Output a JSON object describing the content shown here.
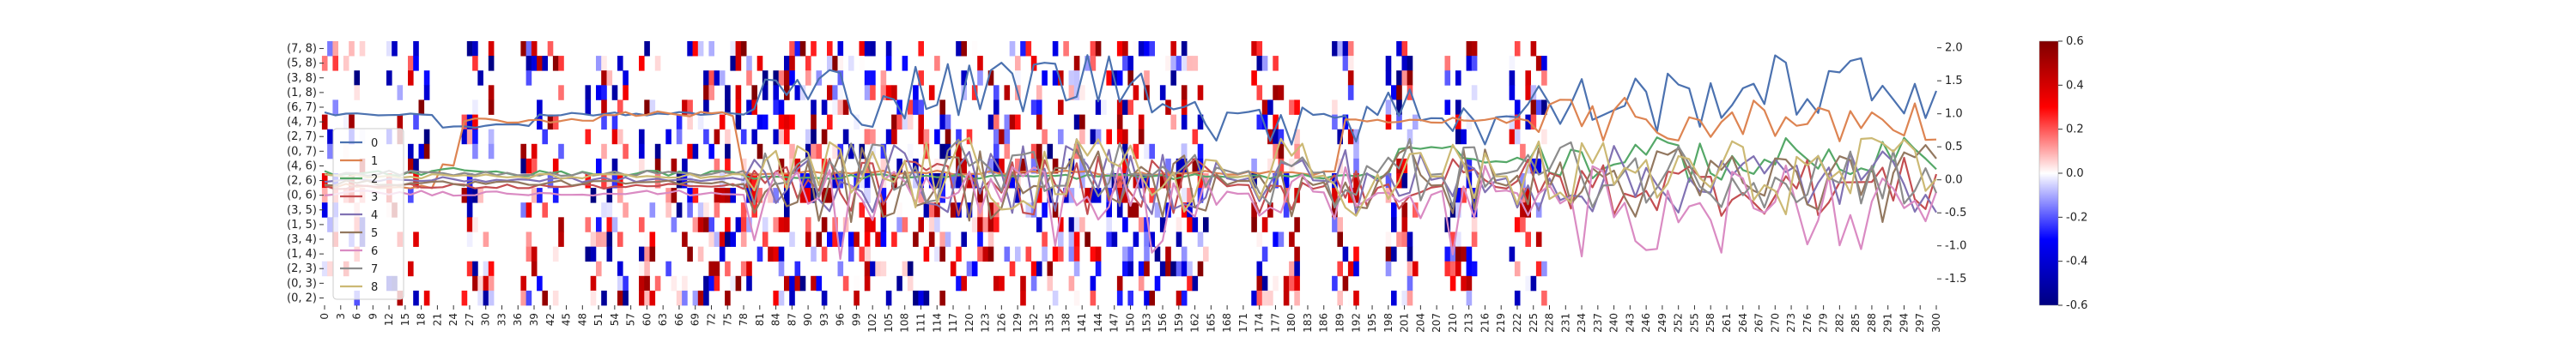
{
  "chart_data": {
    "type": "heatmap",
    "title": "",
    "xlabel": "",
    "ylabel": "",
    "x_ticks": [
      0,
      3,
      6,
      9,
      12,
      15,
      18,
      21,
      24,
      27,
      30,
      33,
      36,
      39,
      42,
      45,
      48,
      51,
      54,
      57,
      60,
      63,
      66,
      69,
      72,
      75,
      78,
      81,
      84,
      87,
      90,
      93,
      96,
      99,
      102,
      105,
      108,
      111,
      114,
      117,
      120,
      123,
      126,
      129,
      132,
      135,
      138,
      141,
      144,
      147,
      150,
      153,
      156,
      159,
      162,
      165,
      168,
      171,
      174,
      177,
      180,
      183,
      186,
      189,
      192,
      195,
      198,
      201,
      204,
      207,
      210,
      213,
      216,
      219,
      222,
      225,
      228,
      231,
      234,
      237,
      240,
      243,
      246,
      249,
      252,
      255,
      258,
      261,
      264,
      267,
      270,
      273,
      276,
      279,
      282,
      285,
      288,
      291,
      294,
      297,
      300
    ],
    "xlim": [
      0,
      300
    ],
    "y_categories": [
      "(7, 8)",
      "(5, 8)",
      "(3, 8)",
      "(1, 8)",
      "(6, 7)",
      "(4, 7)",
      "(2, 7)",
      "(0, 7)",
      "(4, 6)",
      "(2, 6)",
      "(0, 6)",
      "(3, 5)",
      "(1, 5)",
      "(3, 4)",
      "(1, 4)",
      "(2, 3)",
      "(0, 3)",
      "(0, 2)"
    ],
    "heatmap_colorbar": {
      "ticks": [
        0.6,
        0.4,
        0.2,
        0.0,
        -0.2,
        -0.4,
        -0.6
      ],
      "range": [
        -0.6,
        0.6
      ],
      "cmap": "seismic"
    },
    "overlay_axis": {
      "ticks": [
        2.0,
        1.5,
        1.0,
        0.5,
        0.0,
        -0.5,
        -1.0,
        -1.5
      ],
      "range": [
        -1.9,
        2.1
      ]
    },
    "active_column_ranges": [
      [
        0,
        2
      ],
      [
        4,
        7
      ],
      [
        12,
        14
      ],
      [
        16,
        19
      ],
      [
        26,
        31
      ],
      [
        37,
        44
      ],
      [
        49,
        56
      ],
      [
        59,
        62
      ],
      [
        64,
        71
      ],
      [
        72,
        80
      ],
      [
        80,
        101
      ],
      [
        101,
        134
      ],
      [
        135,
        160
      ],
      [
        160,
        164
      ],
      [
        173,
        181
      ],
      [
        188,
        192
      ],
      [
        198,
        203
      ],
      [
        209,
        214
      ],
      [
        221,
        227
      ]
    ],
    "legend": {
      "placement": "lower-left",
      "entries": [
        "0",
        "1",
        "2",
        "3",
        "4",
        "5",
        "6",
        "7",
        "8"
      ]
    },
    "series_colors": [
      "#4c72b0",
      "#dd8452",
      "#55a868",
      "#c44e52",
      "#8172b3",
      "#937860",
      "#da8bc3",
      "#8c8c8c",
      "#ccb974"
    ],
    "series": [
      {
        "name": "0",
        "style": "high",
        "base": 1.0,
        "steps": [
          [
            22,
            0.82
          ],
          [
            40,
            1.0
          ],
          [
            58,
            1.0
          ],
          [
            80,
            1.3
          ],
          [
            125,
            1.5
          ],
          [
            160,
            1.0
          ],
          [
            205,
            0.95
          ],
          [
            222,
            1.1
          ],
          [
            235,
            1.2
          ],
          [
            260,
            1.4
          ],
          [
            300,
            1.5
          ]
        ]
      },
      {
        "name": "1",
        "style": "flat",
        "base": 0.0,
        "steps": [
          [
            0,
            -0.1
          ],
          [
            22,
            0.2
          ],
          [
            25,
            0.9
          ],
          [
            52,
            1.0
          ],
          [
            78,
            0.1
          ],
          [
            190,
            0.9
          ],
          [
            211,
            0.9
          ]
        ]
      },
      {
        "name": "2",
        "style": "flat",
        "base": 0.1,
        "steps": [
          [
            22,
            0.15
          ],
          [
            30,
            0.1
          ],
          [
            78,
            0.05
          ],
          [
            200,
            0.5
          ],
          [
            211,
            0.3
          ]
        ]
      },
      {
        "name": "3",
        "style": "mid",
        "base": -0.1,
        "steps": []
      },
      {
        "name": "4",
        "style": "mid",
        "base": 0.0,
        "steps": []
      },
      {
        "name": "5",
        "style": "mid",
        "base": -0.05,
        "steps": []
      },
      {
        "name": "6",
        "style": "mid",
        "base": -0.2,
        "steps": []
      },
      {
        "name": "7",
        "style": "mid",
        "base": 0.1,
        "steps": []
      },
      {
        "name": "8",
        "style": "mid",
        "base": 0.05,
        "steps": []
      }
    ]
  }
}
